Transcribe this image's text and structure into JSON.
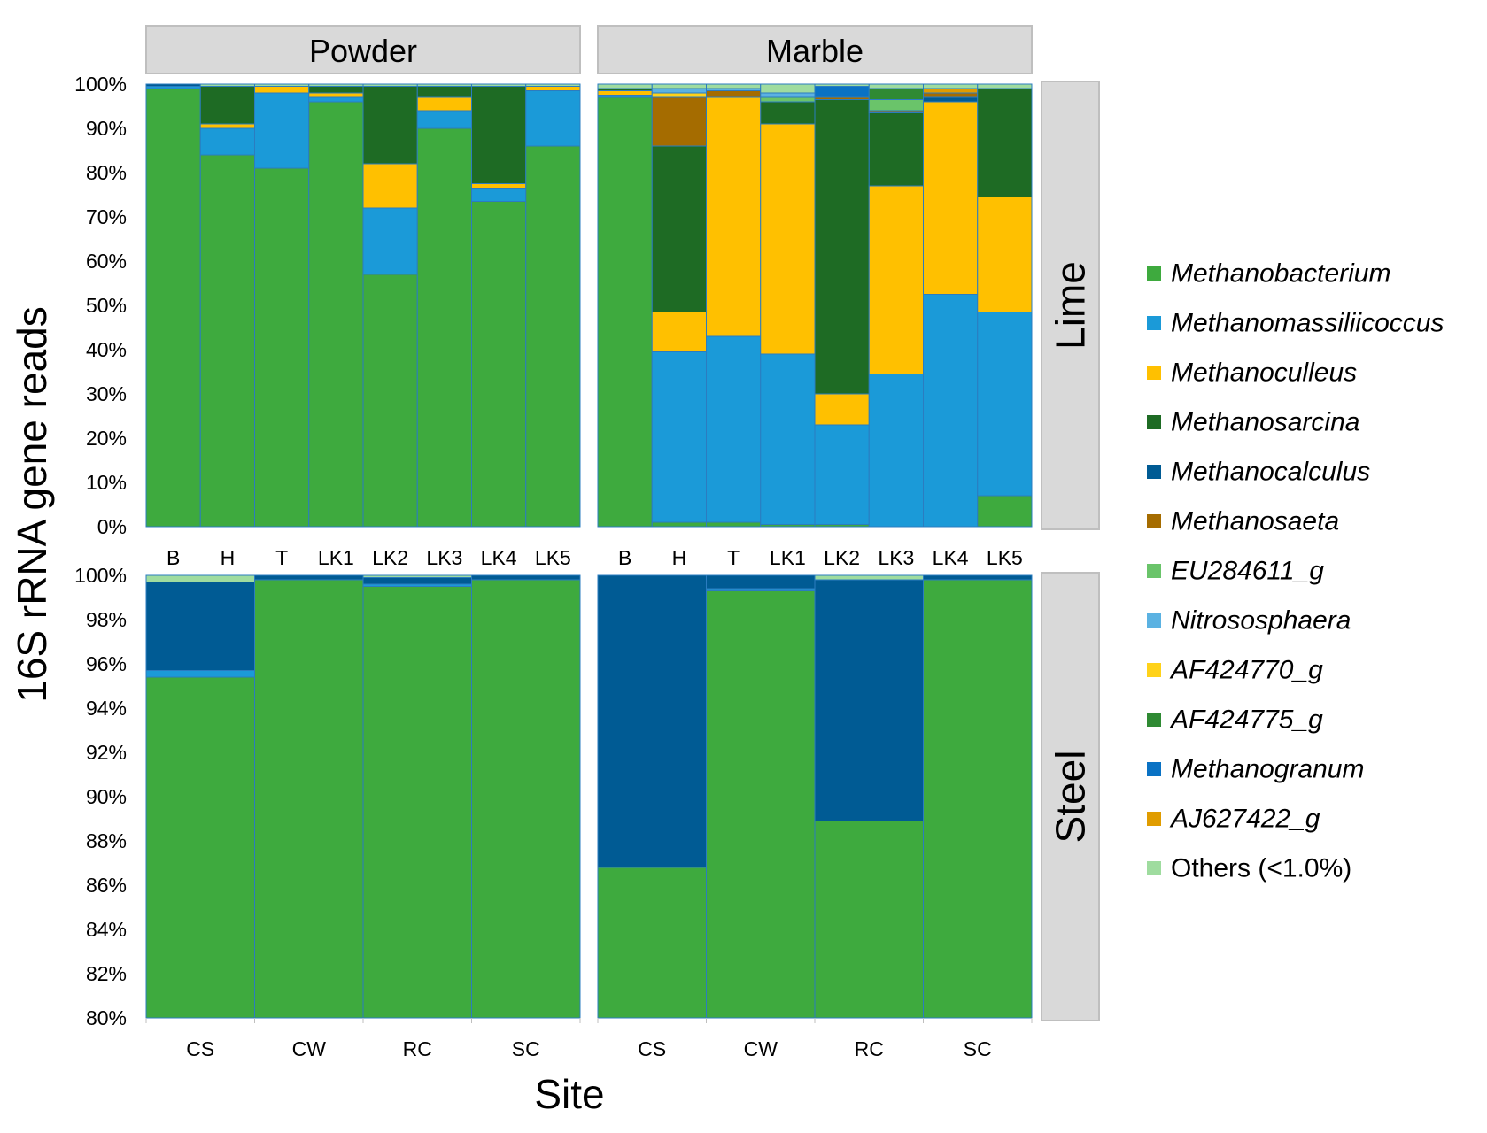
{
  "chart_data": {
    "type": "bar",
    "stacked": true,
    "ylabel": "16S rRNA gene reads",
    "xlabel": "Site",
    "column_facets": [
      "Powder",
      "Marble"
    ],
    "row_facets": [
      "Lime",
      "Steel"
    ],
    "legend": {
      "placement": "right",
      "entries": [
        {
          "key": "Methanobacterium",
          "label": "Methanobacterium",
          "color": "#3eaa3e",
          "italic": true
        },
        {
          "key": "Methanomassiliicoccus",
          "label": "Methanomassiliicoccus",
          "color": "#1b9ad8",
          "italic": true
        },
        {
          "key": "Methanoculleus",
          "label": "Methanoculleus",
          "color": "#ffc000",
          "italic": true
        },
        {
          "key": "Methanosarcina",
          "label": "Methanosarcina",
          "color": "#1e6b24",
          "italic": true
        },
        {
          "key": "Methanocalculus",
          "label": "Methanocalculus",
          "color": "#005b94",
          "italic": true
        },
        {
          "key": "Methanosaeta",
          "label": "Methanosaeta",
          "color": "#a56c00",
          "italic": true
        },
        {
          "key": "EU284611_g",
          "label": "EU284611_g",
          "color": "#6ac46a",
          "italic": true
        },
        {
          "key": "Nitrososphaera",
          "label": "Nitrososphaera",
          "color": "#5bb2e2",
          "italic": true
        },
        {
          "key": "AF424770_g",
          "label": "AF424770_g",
          "color": "#ffd21a",
          "italic": true
        },
        {
          "key": "AF424775_g",
          "label": "AF424775_g",
          "color": "#2f8a33",
          "italic": true
        },
        {
          "key": "Methanogranum",
          "label": "Methanogranum",
          "color": "#0a72c4",
          "italic": true
        },
        {
          "key": "AJ627422_g",
          "label": "AJ627422_g",
          "color": "#e09c00",
          "italic": true
        },
        {
          "key": "Others",
          "label": "Others (<1.0%)",
          "color": "#9fdc9f",
          "italic": false
        }
      ]
    },
    "lime": {
      "ylim": [
        0,
        100
      ],
      "yticks": [
        "0%",
        "10%",
        "20%",
        "30%",
        "40%",
        "50%",
        "60%",
        "70%",
        "80%",
        "90%",
        "100%"
      ],
      "categories": [
        "B",
        "H",
        "T",
        "LK1",
        "LK2",
        "LK3",
        "LK4",
        "LK5"
      ],
      "panels": {
        "Powder": [
          [
            [
              "Methanobacterium",
              99.0
            ],
            [
              "Methanomassiliicoccus",
              0.5
            ],
            [
              "Methanocalculus",
              0.5
            ]
          ],
          [
            [
              "Methanobacterium",
              84.0
            ],
            [
              "Methanomassiliicoccus",
              6.0
            ],
            [
              "Methanoculleus",
              1.0
            ],
            [
              "Methanosarcina",
              8.5
            ],
            [
              "Others",
              0.5
            ]
          ],
          [
            [
              "Methanobacterium",
              81.0
            ],
            [
              "Methanomassiliicoccus",
              17.0
            ],
            [
              "Methanoculleus",
              1.5
            ],
            [
              "Others",
              0.5
            ]
          ],
          [
            [
              "Methanobacterium",
              96.0
            ],
            [
              "Methanomassiliicoccus",
              1.0
            ],
            [
              "Methanoculleus",
              1.0
            ],
            [
              "Methanosarcina",
              1.5
            ],
            [
              "Others",
              0.5
            ]
          ],
          [
            [
              "Methanobacterium",
              57.0
            ],
            [
              "Methanomassiliicoccus",
              15.0
            ],
            [
              "Methanoculleus",
              10.0
            ],
            [
              "Methanosarcina",
              17.5
            ],
            [
              "Others",
              0.5
            ]
          ],
          [
            [
              "Methanobacterium",
              90.0
            ],
            [
              "Methanomassiliicoccus",
              4.0
            ],
            [
              "Methanoculleus",
              3.0
            ],
            [
              "Methanosarcina",
              2.5
            ],
            [
              "Others",
              0.5
            ]
          ],
          [
            [
              "Methanobacterium",
              73.5
            ],
            [
              "Methanomassiliicoccus",
              3.0
            ],
            [
              "Methanoculleus",
              1.0
            ],
            [
              "Methanosarcina",
              22.0
            ],
            [
              "Others",
              0.5
            ]
          ],
          [
            [
              "Methanobacterium",
              86.0
            ],
            [
              "Methanomassiliicoccus",
              12.5
            ],
            [
              "Methanoculleus",
              1.0
            ],
            [
              "Others",
              0.5
            ]
          ]
        ],
        "Marble": [
          [
            [
              "Methanobacterium",
              97.0
            ],
            [
              "Methanomassiliicoccus",
              0.5
            ],
            [
              "Methanoculleus",
              1.0
            ],
            [
              "Methanosarcina",
              0.5
            ],
            [
              "Others",
              1.0
            ]
          ],
          [
            [
              "Methanobacterium",
              1.0
            ],
            [
              "Methanomassiliicoccus",
              38.5
            ],
            [
              "Methanoculleus",
              9.0
            ],
            [
              "Methanosarcina",
              37.5
            ],
            [
              "Methanosaeta",
              11.0
            ],
            [
              "AF424770_g",
              1.0
            ],
            [
              "Nitrososphaera",
              1.0
            ],
            [
              "Others",
              1.0
            ]
          ],
          [
            [
              "Methanobacterium",
              1.0
            ],
            [
              "Methanomassiliicoccus",
              42.0
            ],
            [
              "Methanoculleus",
              54.0
            ],
            [
              "Methanosaeta",
              1.5
            ],
            [
              "Nitrososphaera",
              0.5
            ],
            [
              "Others",
              1.0
            ]
          ],
          [
            [
              "Methanobacterium",
              0.5
            ],
            [
              "Methanomassiliicoccus",
              38.5
            ],
            [
              "Methanoculleus",
              52.0
            ],
            [
              "Methanosarcina",
              5.0
            ],
            [
              "EU284611_g",
              1.0
            ],
            [
              "Nitrososphaera",
              1.0
            ],
            [
              "Others",
              2.0
            ]
          ],
          [
            [
              "Methanobacterium",
              0.5
            ],
            [
              "Methanomassiliicoccus",
              22.5
            ],
            [
              "Methanoculleus",
              7.0
            ],
            [
              "Methanosarcina",
              66.5
            ],
            [
              "Methanosaeta",
              0.5
            ],
            [
              "Methanogranum",
              2.5
            ],
            [
              "Others",
              0.5
            ]
          ],
          [
            [
              "Methanomassiliicoccus",
              34.5
            ],
            [
              "Methanoculleus",
              42.5
            ],
            [
              "Methanosarcina",
              16.5
            ],
            [
              "Methanosaeta",
              0.5
            ],
            [
              "EU284611_g",
              2.5
            ],
            [
              "AF424775_g",
              2.5
            ],
            [
              "Others",
              1.0
            ]
          ],
          [
            [
              "Methanomassiliicoccus",
              52.5
            ],
            [
              "Methanoculleus",
              43.5
            ],
            [
              "Methanocalculus",
              1.0
            ],
            [
              "Methanosaeta",
              1.0
            ],
            [
              "AJ627422_g",
              1.0
            ],
            [
              "Others",
              1.0
            ]
          ],
          [
            [
              "Methanobacterium",
              7.0
            ],
            [
              "Methanomassiliicoccus",
              41.5
            ],
            [
              "Methanoculleus",
              26.0
            ],
            [
              "Methanosarcina",
              24.5
            ],
            [
              "Others",
              1.0
            ]
          ]
        ]
      }
    },
    "steel": {
      "ylim": [
        80,
        100
      ],
      "yticks": [
        "80%",
        "82%",
        "84%",
        "86%",
        "88%",
        "90%",
        "92%",
        "94%",
        "96%",
        "98%",
        "100%"
      ],
      "categories": [
        "CS",
        "CW",
        "RC",
        "SC"
      ],
      "panels": {
        "Powder": [
          [
            [
              "Methanobacterium",
              95.4
            ],
            [
              "Methanomassiliicoccus",
              0.3
            ],
            [
              "Methanocalculus",
              4.0
            ],
            [
              "Others",
              0.3
            ]
          ],
          [
            [
              "Methanobacterium",
              99.8
            ],
            [
              "Methanocalculus",
              0.2
            ]
          ],
          [
            [
              "Methanobacterium",
              99.5
            ],
            [
              "Methanomassiliicoccus",
              0.1
            ],
            [
              "Methanocalculus",
              0.3
            ],
            [
              "Others",
              0.1
            ]
          ],
          [
            [
              "Methanobacterium",
              99.8
            ],
            [
              "Methanocalculus",
              0.2
            ]
          ]
        ],
        "Marble": [
          [
            [
              "Methanobacterium",
              86.8
            ],
            [
              "Methanocalculus",
              13.2
            ]
          ],
          [
            [
              "Methanobacterium",
              99.3
            ],
            [
              "Methanomassiliicoccus",
              0.1
            ],
            [
              "Methanocalculus",
              0.6
            ]
          ],
          [
            [
              "Methanobacterium",
              88.9
            ],
            [
              "Methanocalculus",
              10.9
            ],
            [
              "Others",
              0.2
            ]
          ],
          [
            [
              "Methanobacterium",
              99.8
            ],
            [
              "Methanocalculus",
              0.2
            ]
          ]
        ]
      }
    }
  }
}
